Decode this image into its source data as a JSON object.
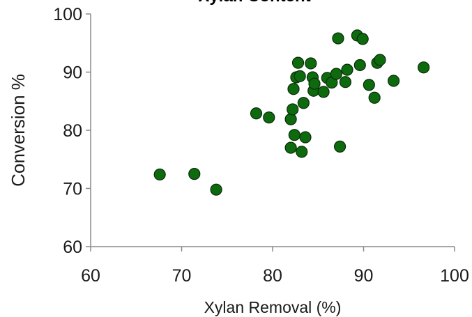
{
  "chart_data": {
    "type": "scatter",
    "title": "Xylan Content",
    "xlabel": "Xylan Removal (%)",
    "ylabel": "Conversion %",
    "xlim": [
      60,
      100
    ],
    "ylim": [
      60,
      100
    ],
    "xticks": [
      "60",
      "70",
      "80",
      "90",
      "100"
    ],
    "yticks": [
      "60",
      "70",
      "80",
      "90",
      "100"
    ],
    "marker_color": "#0d6b0d",
    "grid": false,
    "points": [
      {
        "x": 67.6,
        "y": 72.4
      },
      {
        "x": 71.4,
        "y": 72.5
      },
      {
        "x": 73.8,
        "y": 69.8
      },
      {
        "x": 78.2,
        "y": 82.9
      },
      {
        "x": 79.6,
        "y": 82.2
      },
      {
        "x": 82.0,
        "y": 81.9
      },
      {
        "x": 82.0,
        "y": 77.0
      },
      {
        "x": 82.2,
        "y": 83.6
      },
      {
        "x": 82.3,
        "y": 87.1
      },
      {
        "x": 82.4,
        "y": 79.2
      },
      {
        "x": 82.6,
        "y": 89.1
      },
      {
        "x": 82.8,
        "y": 91.6
      },
      {
        "x": 83.0,
        "y": 89.3
      },
      {
        "x": 83.2,
        "y": 76.3
      },
      {
        "x": 83.4,
        "y": 84.7
      },
      {
        "x": 83.6,
        "y": 78.8
      },
      {
        "x": 84.2,
        "y": 91.5
      },
      {
        "x": 84.4,
        "y": 89.1
      },
      {
        "x": 84.5,
        "y": 86.8
      },
      {
        "x": 84.6,
        "y": 88.0
      },
      {
        "x": 85.6,
        "y": 86.6
      },
      {
        "x": 86.0,
        "y": 89.0
      },
      {
        "x": 86.5,
        "y": 88.2
      },
      {
        "x": 87.0,
        "y": 89.7
      },
      {
        "x": 87.2,
        "y": 95.8
      },
      {
        "x": 87.4,
        "y": 77.2
      },
      {
        "x": 88.0,
        "y": 88.3
      },
      {
        "x": 88.2,
        "y": 90.4
      },
      {
        "x": 89.3,
        "y": 96.3
      },
      {
        "x": 89.6,
        "y": 91.2
      },
      {
        "x": 89.9,
        "y": 95.7
      },
      {
        "x": 90.6,
        "y": 87.8
      },
      {
        "x": 91.2,
        "y": 85.6
      },
      {
        "x": 91.5,
        "y": 91.6
      },
      {
        "x": 91.8,
        "y": 92.1
      },
      {
        "x": 93.3,
        "y": 88.5
      },
      {
        "x": 96.6,
        "y": 90.8
      }
    ]
  }
}
